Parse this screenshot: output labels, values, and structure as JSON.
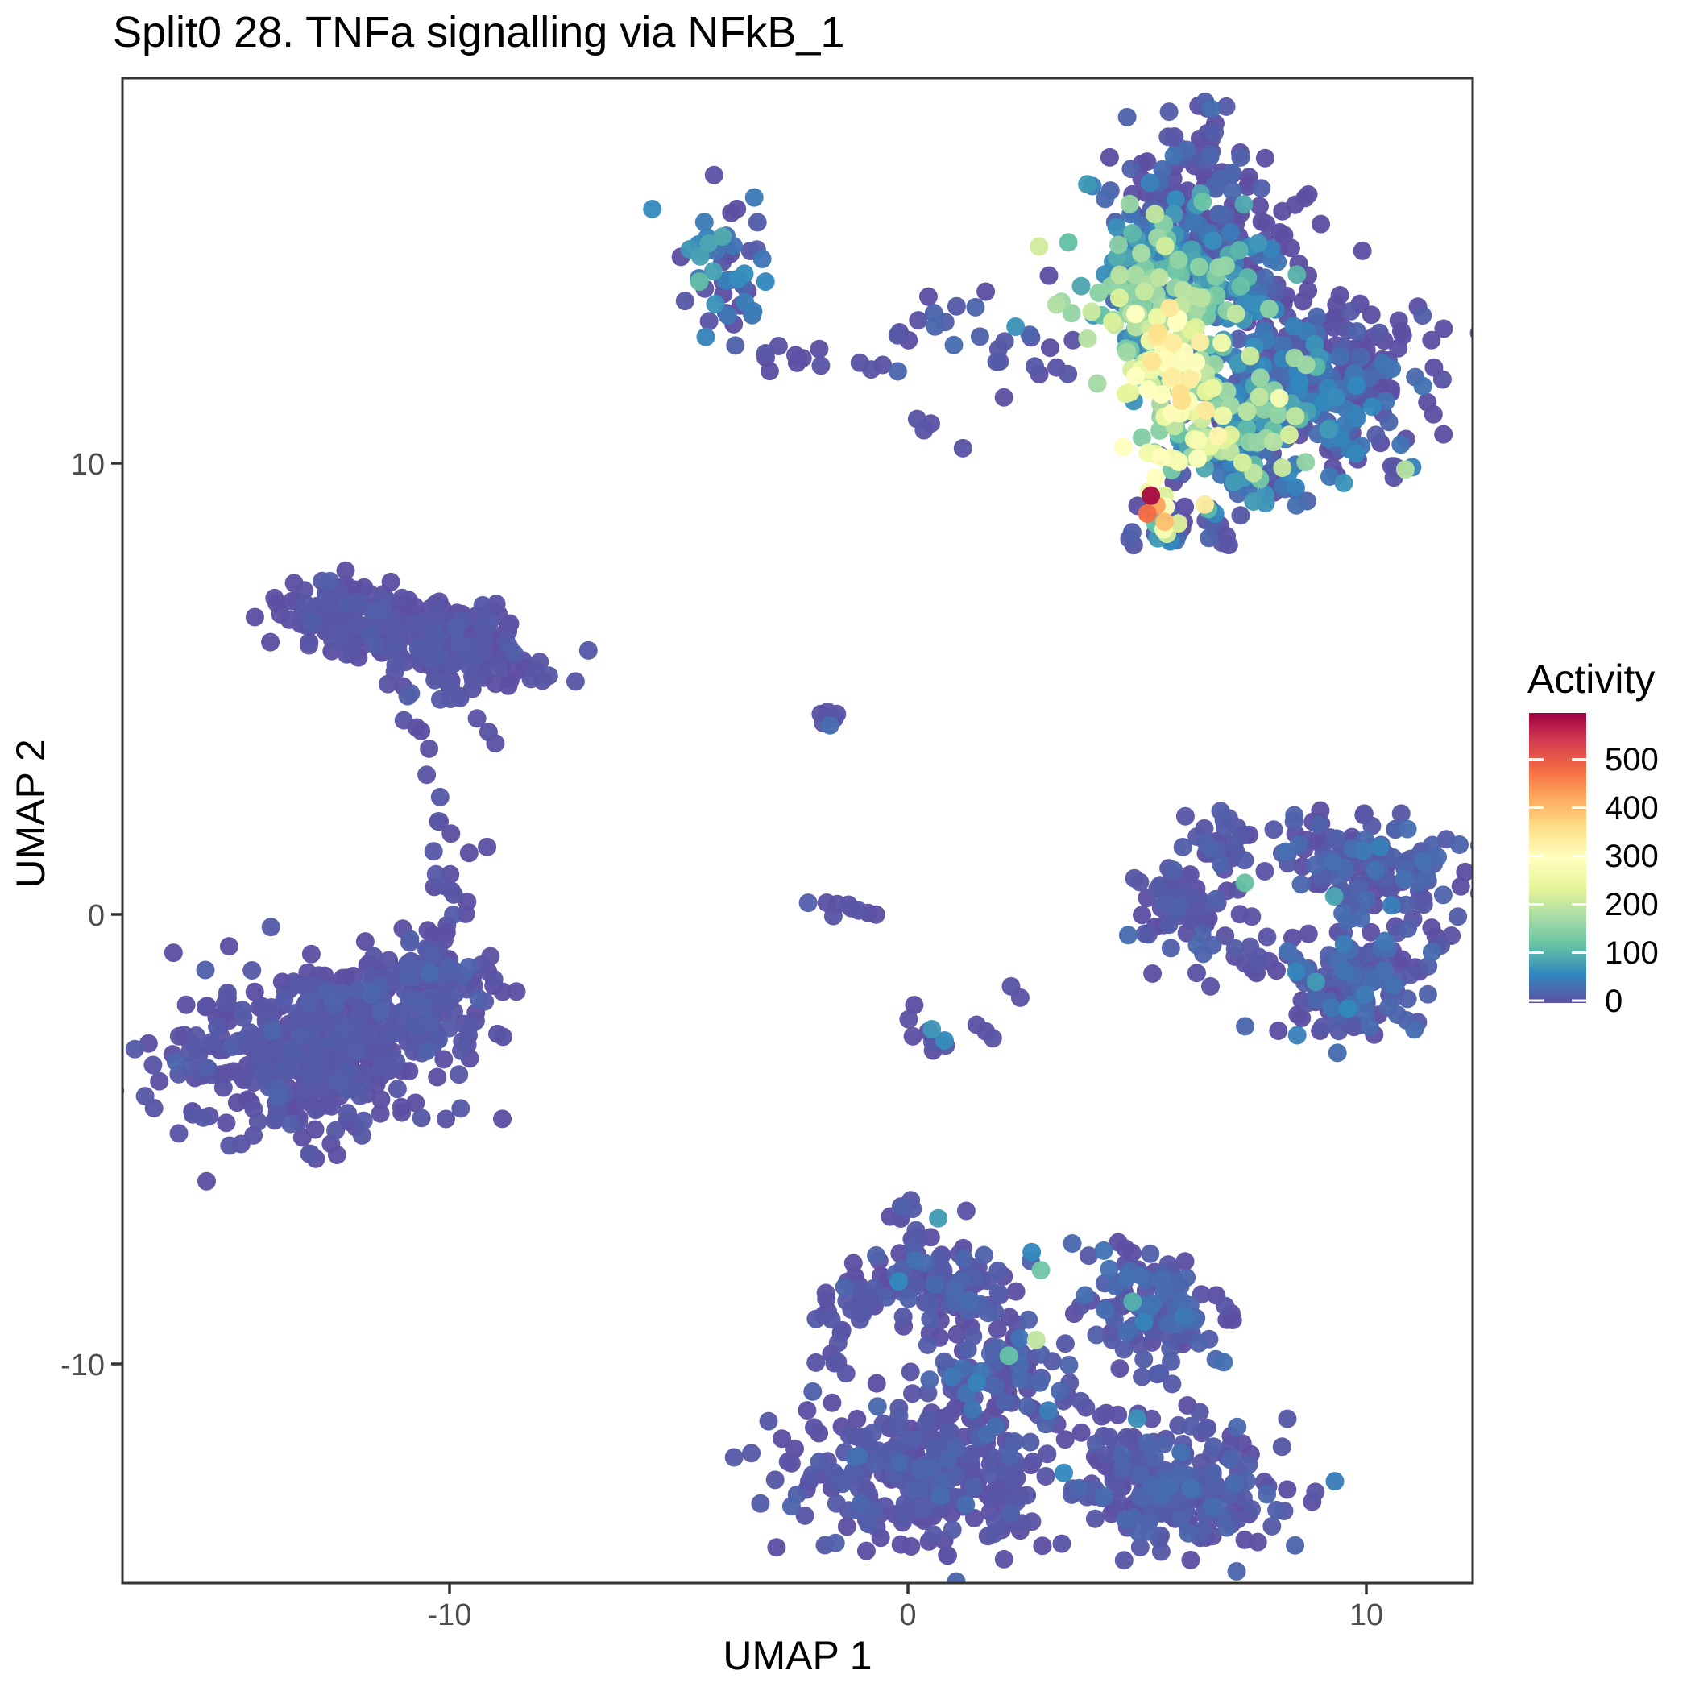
{
  "title": "Split0 28. TNFa signalling via NFkB_1",
  "axes": {
    "x": {
      "label": "UMAP 1",
      "ticks": [
        -10,
        0,
        10
      ]
    },
    "y": {
      "label": "UMAP 2",
      "ticks": [
        10,
        0,
        -10
      ]
    }
  },
  "legend": {
    "title": "Activity",
    "ticks": [
      0,
      100,
      200,
      300,
      400,
      500
    ],
    "vmin": 0,
    "vmax": 600,
    "colormap": [
      "#5e4fa2",
      "#3288bd",
      "#66c2a5",
      "#abdda4",
      "#e6f598",
      "#ffffbf",
      "#fee08b",
      "#fdae61",
      "#f46d43",
      "#d53e4f",
      "#9e0142"
    ]
  },
  "colors": {
    "background": "#ffffff",
    "panel_border": "#333333",
    "tick": "#333333",
    "axis_text": "#4d4d4d",
    "axis_title_text": "#000000"
  },
  "chart_data": {
    "type": "scatter",
    "title": "Split0 28. TNFa signalling via NFkB_1",
    "xlabel": "UMAP 1",
    "ylabel": "UMAP 2",
    "xlim": [
      -17.1,
      12.3
    ],
    "ylim": [
      -14.9,
      18.6
    ],
    "grid": false,
    "legend_position": "right",
    "point_radius_px": 11.5,
    "seed": 42,
    "clusters": [
      {
        "name": "top-spike",
        "cx": 6.3,
        "cy": 16.6,
        "sx": 0.55,
        "sy": 0.85,
        "rot": -20,
        "n": 55,
        "am": 12,
        "asd": 15
      },
      {
        "name": "topright-upper-main",
        "cx": 6.2,
        "cy": 14.6,
        "sx": 1.05,
        "sy": 1.0,
        "rot": -15,
        "n": 310,
        "am": 55,
        "asd": 60,
        "amax": 360,
        "gx": -30,
        "gy": -45
      },
      {
        "name": "topright-colored-band",
        "cx": 5.55,
        "cy": 12.5,
        "sx": 0.6,
        "sy": 0.85,
        "rot": 25,
        "n": 120,
        "am": 195,
        "asd": 85,
        "amin": 20,
        "amax": 360,
        "gy": -60
      },
      {
        "name": "topright-band-lower",
        "cx": 6.5,
        "cy": 10.7,
        "sx": 0.75,
        "sy": 0.5,
        "rot": 10,
        "n": 70,
        "am": 140,
        "asd": 95,
        "amax": 340
      },
      {
        "name": "topright-right-lobe",
        "cx": 8.9,
        "cy": 11.9,
        "sx": 1.25,
        "sy": 0.85,
        "rot": -8,
        "n": 290,
        "am": 16,
        "asd": 26,
        "gx": -12,
        "gy": -10
      },
      {
        "name": "topright-right-lobe-inner",
        "cx": 7.7,
        "cy": 11.3,
        "sx": 0.6,
        "sy": 0.6,
        "rot": 0,
        "n": 55,
        "am": 95,
        "asd": 75
      },
      {
        "name": "topright-lower-strip",
        "cx": 7.3,
        "cy": 9.9,
        "sx": 0.9,
        "sy": 0.45,
        "rot": -12,
        "n": 70,
        "am": 30,
        "asd": 45
      },
      {
        "name": "hotspot-base",
        "cx": 5.6,
        "cy": 8.85,
        "sx": 0.5,
        "sy": 0.35,
        "rot": 0,
        "n": 24,
        "am": 8,
        "asd": 10
      },
      {
        "name": "topleft-small",
        "cx": -3.9,
        "cy": 14.2,
        "sx": 0.5,
        "sy": 0.85,
        "rot": 10,
        "n": 48,
        "am": 25,
        "asd": 35
      },
      {
        "name": "midtop-chain",
        "cx": 1.8,
        "cy": 12.9,
        "sx": 1.15,
        "sy": 0.6,
        "rot": -18,
        "n": 26,
        "am": 8,
        "asd": 10
      },
      {
        "name": "left-elongated-a",
        "cx": -12.1,
        "cy": 6.55,
        "sx": 0.85,
        "sy": 0.4,
        "rot": -12,
        "n": 130,
        "am": 4,
        "asd": 6
      },
      {
        "name": "left-elongated-b",
        "cx": -9.9,
        "cy": 5.95,
        "sx": 1.05,
        "sy": 0.45,
        "rot": -14,
        "n": 170,
        "am": 4,
        "asd": 6
      },
      {
        "name": "left-blob-main",
        "cx": -13.1,
        "cy": -3.0,
        "sx": 1.5,
        "sy": 0.95,
        "rot": 8,
        "n": 430,
        "am": 4,
        "asd": 7
      },
      {
        "name": "left-blob-sub",
        "cx": -10.7,
        "cy": -1.55,
        "sx": 0.85,
        "sy": 0.6,
        "rot": 20,
        "n": 130,
        "am": 5,
        "asd": 8
      },
      {
        "name": "ring-left-node",
        "cx": 5.95,
        "cy": 0.2,
        "sx": 0.55,
        "sy": 0.55,
        "rot": 0,
        "n": 55,
        "am": 6,
        "asd": 9
      },
      {
        "name": "ring-topleft-blob",
        "cx": 6.9,
        "cy": 1.75,
        "sx": 0.4,
        "sy": 0.3,
        "rot": 0,
        "n": 22,
        "am": 5,
        "asd": 8
      },
      {
        "name": "ring-right-top",
        "cx": 10.1,
        "cy": 1.0,
        "sx": 0.95,
        "sy": 0.6,
        "rot": -10,
        "n": 120,
        "am": 10,
        "asd": 16
      },
      {
        "name": "ring-right-bottom",
        "cx": 9.8,
        "cy": -1.5,
        "sx": 0.9,
        "sy": 0.65,
        "rot": 15,
        "n": 130,
        "am": 10,
        "asd": 16
      },
      {
        "name": "bottom-upperleft-lobe",
        "cx": 0.8,
        "cy": -8.1,
        "sx": 0.75,
        "sy": 0.55,
        "rot": -20,
        "n": 95,
        "am": 8,
        "asd": 12
      },
      {
        "name": "bottom-leftmid",
        "cx": -0.7,
        "cy": -8.5,
        "sx": 0.5,
        "sy": 0.4,
        "rot": 0,
        "n": 32,
        "am": 6,
        "asd": 9
      },
      {
        "name": "bottom-farleft",
        "cx": -1.6,
        "cy": -9.5,
        "sx": 0.25,
        "sy": 0.45,
        "rot": 0,
        "n": 12,
        "am": 5,
        "asd": 7
      },
      {
        "name": "bottom-left-big",
        "cx": 0.3,
        "cy": -12.4,
        "sx": 1.35,
        "sy": 0.8,
        "rot": -6,
        "n": 300,
        "am": 6,
        "asd": 9
      },
      {
        "name": "bottom-middle-connector",
        "cx": 1.9,
        "cy": -10.3,
        "sx": 0.75,
        "sy": 0.75,
        "rot": -30,
        "n": 90,
        "am": 10,
        "asd": 16
      },
      {
        "name": "bottom-upperright-lobe",
        "cx": 5.3,
        "cy": -8.8,
        "sx": 0.85,
        "sy": 0.65,
        "rot": -25,
        "n": 130,
        "am": 10,
        "asd": 15
      },
      {
        "name": "bottom-right-big",
        "cx": 5.9,
        "cy": -12.7,
        "sx": 1.1,
        "sy": 0.7,
        "rot": -10,
        "n": 240,
        "am": 8,
        "asd": 12
      }
    ],
    "chains": [
      {
        "name": "ring-top-chain",
        "x1": 7.3,
        "y1": 1.55,
        "x2": 10.0,
        "y2": 1.4,
        "n": 14,
        "j": 0.22
      },
      {
        "name": "ring-bottom-chain",
        "x1": 5.9,
        "y1": -0.55,
        "x2": 8.85,
        "y2": -1.35,
        "n": 18,
        "j": 0.28
      },
      {
        "name": "left-blob-arm",
        "x1": -10.45,
        "y1": -0.75,
        "x2": -9.6,
        "y2": 1.25,
        "n": 16,
        "j": 0.3
      },
      {
        "name": "elongated-drip",
        "x1": -11.35,
        "y1": 5.15,
        "x2": -10.55,
        "y2": 3.85,
        "n": 8,
        "j": 0.2
      },
      {
        "name": "elongated-spike",
        "x1": -10.3,
        "y1": 2.5,
        "x2": -10.2,
        "y2": 1.45,
        "n": 5,
        "j": 0.12
      },
      {
        "name": "mid-left-chain",
        "x1": -3.3,
        "y1": 12.5,
        "x2": -1.85,
        "y2": 12.3,
        "n": 9,
        "j": 0.14
      },
      {
        "name": "bottom-connector",
        "x1": 3.25,
        "y1": -10.85,
        "x2": 4.7,
        "y2": -11.75,
        "n": 12,
        "j": 0.28
      },
      {
        "name": "bottom-top-spike",
        "x1": -0.3,
        "y1": -6.35,
        "x2": 0.15,
        "y2": -7.35,
        "n": 10,
        "j": 0.2
      },
      {
        "name": "center-bottom-arc",
        "x1": -0.1,
        "y1": -2.2,
        "x2": 1.0,
        "y2": -2.85,
        "n": 8,
        "j": 0.15
      },
      {
        "name": "center-small-chain",
        "x1": -2.05,
        "y1": 0.3,
        "x2": -0.75,
        "y2": 0.05,
        "n": 9,
        "j": 0.12
      }
    ],
    "points": [
      [
        3.57,
        13.35,
        160
      ],
      [
        4.05,
        13.3,
        75
      ],
      [
        4.5,
        13.65,
        30
      ],
      [
        3.6,
        12.75,
        4
      ],
      [
        5.4,
        9.7,
        300
      ],
      [
        5.3,
        9.3,
        590
      ],
      [
        5.6,
        9.3,
        230
      ],
      [
        5.42,
        9.08,
        430
      ],
      [
        5.62,
        9.05,
        300
      ],
      [
        5.22,
        8.9,
        480
      ],
      [
        5.6,
        8.72,
        400
      ],
      [
        5.9,
        8.68,
        230
      ],
      [
        5.58,
        8.55,
        280
      ],
      [
        5.65,
        8.45,
        220
      ],
      [
        5.4,
        8.68,
        120
      ],
      [
        5.45,
        8.35,
        80
      ],
      [
        5.72,
        8.28,
        60
      ],
      [
        6.55,
        9.0,
        110
      ],
      [
        6.7,
        8.9,
        60
      ],
      [
        6.5,
        8.75,
        8
      ],
      [
        6.8,
        8.65,
        4
      ],
      [
        6.7,
        8.5,
        4
      ],
      [
        6.95,
        8.4,
        4
      ],
      [
        6.85,
        8.25,
        6
      ],
      [
        7.0,
        8.2,
        5
      ],
      [
        10.55,
        9.95,
        6
      ],
      [
        10.7,
        9.9,
        4
      ],
      [
        10.85,
        9.88,
        190
      ],
      [
        11.0,
        9.93,
        55
      ],
      [
        10.6,
        9.7,
        5
      ],
      [
        -4.35,
        14.9,
        90
      ],
      [
        -4.55,
        14.05,
        115
      ],
      [
        -4.2,
        13.55,
        70
      ],
      [
        -1.05,
        12.25,
        5
      ],
      [
        -0.8,
        12.1,
        6
      ],
      [
        -0.55,
        12.2,
        4
      ],
      [
        0.2,
        11.0,
        5
      ],
      [
        0.35,
        10.75,
        6
      ],
      [
        0.5,
        10.9,
        4
      ],
      [
        1.2,
        10.35,
        5
      ],
      [
        2.35,
        13.05,
        70
      ],
      [
        -1.9,
        4.45,
        4
      ],
      [
        -1.75,
        4.5,
        5
      ],
      [
        -1.6,
        4.35,
        6
      ],
      [
        -1.85,
        4.25,
        8
      ],
      [
        -1.7,
        4.2,
        30
      ],
      [
        -1.55,
        4.45,
        4
      ],
      [
        -9.4,
        4.35,
        4
      ],
      [
        -9.15,
        4.05,
        5
      ],
      [
        -9.0,
        3.8,
        4
      ],
      [
        -10.5,
        3.1,
        4
      ],
      [
        0.52,
        -2.55,
        75
      ],
      [
        0.8,
        -2.8,
        65
      ],
      [
        1.5,
        -2.45,
        5
      ],
      [
        1.7,
        -2.6,
        4
      ],
      [
        1.85,
        -2.75,
        6
      ],
      [
        2.25,
        -1.6,
        5
      ],
      [
        2.45,
        -1.85,
        4
      ],
      [
        9.3,
        0.4,
        90
      ],
      [
        8.9,
        -1.5,
        80
      ],
      [
        9.6,
        -2.1,
        60
      ],
      [
        10.3,
        1.5,
        50
      ],
      [
        7.35,
        0.7,
        120
      ],
      [
        6.9,
        1.0,
        6
      ],
      [
        7.2,
        0.55,
        5
      ],
      [
        6.75,
        0.25,
        8
      ],
      [
        7.5,
        -0.05,
        4
      ],
      [
        6.3,
        -1.3,
        5
      ],
      [
        6.6,
        -1.6,
        4
      ],
      [
        0.66,
        -6.75,
        80
      ],
      [
        2.2,
        -9.8,
        120
      ],
      [
        2.8,
        -9.45,
        200
      ],
      [
        -0.2,
        -8.15,
        60
      ],
      [
        2.9,
        -7.9,
        130
      ],
      [
        2.7,
        -7.5,
        60
      ],
      [
        4.9,
        -8.6,
        100
      ],
      [
        5.15,
        -9.05,
        55
      ],
      [
        5.0,
        -11.2,
        70
      ],
      [
        1.5,
        -10.4,
        55
      ],
      [
        3.4,
        -12.4,
        60
      ]
    ]
  }
}
